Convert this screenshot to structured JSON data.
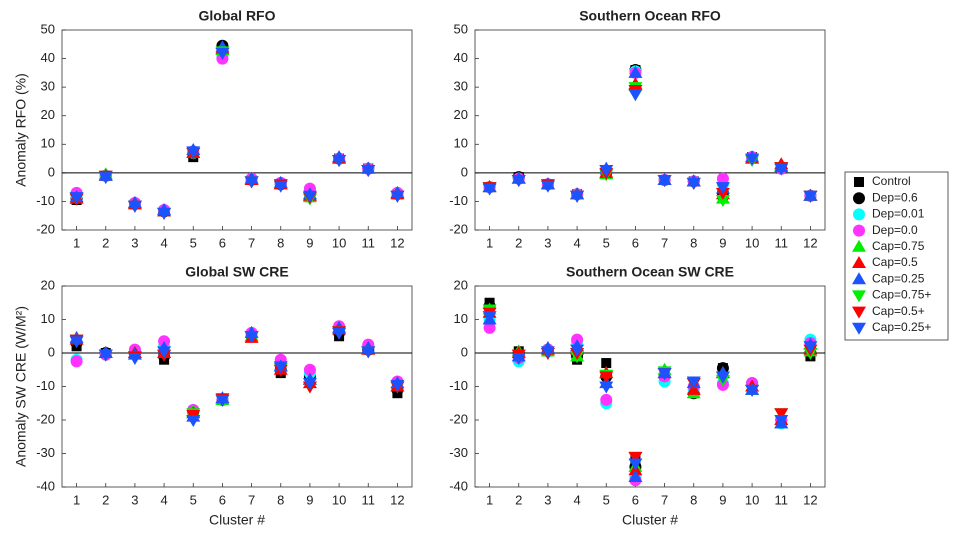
{
  "chart_data": [
    {
      "type": "scatter",
      "title": "Global RFO",
      "ylabel": "Anomaly RFO (%)",
      "categories": [
        "1",
        "2",
        "3",
        "4",
        "5",
        "6",
        "7",
        "8",
        "9",
        "10",
        "11",
        "12"
      ],
      "ylim": [
        -20,
        50
      ],
      "yticks": [
        -20,
        -10,
        0,
        10,
        20,
        30,
        40,
        50
      ],
      "zero_line": true,
      "series": [
        {
          "values": [
            -9.5,
            -1,
            -11,
            -13.5,
            5.5,
            43,
            -2.5,
            -4,
            -8.5,
            5,
            1.5,
            -7.5
          ]
        },
        {
          "values": [
            -9,
            -1,
            -11,
            -13.5,
            6.5,
            44.5,
            -2.5,
            -4,
            -7.5,
            5,
            1.5,
            -7.5
          ]
        },
        {
          "values": [
            -8,
            -1,
            -11,
            -13,
            7,
            41,
            -2.5,
            -3.5,
            -6,
            5,
            1.5,
            -7.5
          ]
        },
        {
          "values": [
            -7,
            -1,
            -10.5,
            -13,
            7.5,
            40,
            -2,
            -3.5,
            -5.5,
            5,
            1.5,
            -7
          ]
        },
        {
          "values": [
            -9,
            -0.5,
            -11,
            -13.5,
            7,
            43,
            -2.5,
            -4,
            -8.5,
            5,
            1.5,
            -7.5
          ]
        },
        {
          "values": [
            -9,
            -1,
            -11,
            -13.5,
            7,
            43.5,
            -2.5,
            -4,
            -8,
            5,
            1.5,
            -7.5
          ]
        },
        {
          "values": [
            -8.5,
            -1,
            -10.5,
            -13,
            8,
            44,
            -2,
            -3.5,
            -7.5,
            5.5,
            1.5,
            -7
          ]
        },
        {
          "values": [
            -9,
            -1,
            -11.5,
            -14,
            7,
            42.5,
            -3,
            -4,
            -9,
            4.5,
            1,
            -8
          ]
        },
        {
          "values": [
            -9,
            -1,
            -11.5,
            -14,
            7,
            42,
            -3,
            -4,
            -8.5,
            4.5,
            1,
            -8
          ]
        },
        {
          "values": [
            -8.5,
            -1.5,
            -11.5,
            -14,
            7.5,
            42,
            -3,
            -4.5,
            -8,
            4.5,
            1,
            -8
          ]
        }
      ]
    },
    {
      "type": "scatter",
      "title": "Southern Ocean RFO",
      "categories": [
        "1",
        "2",
        "3",
        "4",
        "5",
        "6",
        "7",
        "8",
        "9",
        "10",
        "11",
        "12"
      ],
      "ylim": [
        -20,
        50
      ],
      "yticks": [
        -20,
        -10,
        0,
        10,
        20,
        30,
        40,
        50
      ],
      "zero_line": true,
      "series": [
        {
          "values": [
            -5,
            -1.5,
            -4,
            -7.5,
            0,
            36,
            -2.5,
            -3,
            -8.5,
            5.5,
            1.5,
            -8
          ]
        },
        {
          "values": [
            -5,
            -1.5,
            -4,
            -7.5,
            0,
            36,
            -2.5,
            -3,
            -7,
            5.5,
            1.5,
            -8
          ]
        },
        {
          "values": [
            -5,
            -2,
            -4,
            -7.5,
            0.5,
            35.5,
            -2.5,
            -3,
            -4,
            5.5,
            1.5,
            -8
          ]
        },
        {
          "values": [
            -5,
            -2,
            -4,
            -7.5,
            0.5,
            35,
            -2.5,
            -3,
            -2,
            5.5,
            1.5,
            -8
          ]
        },
        {
          "values": [
            -5,
            -2,
            -4,
            -7.5,
            -0.5,
            30.5,
            -2.5,
            -3,
            -9,
            5,
            2.5,
            -8
          ]
        },
        {
          "values": [
            -5,
            -2,
            -4,
            -7.5,
            0,
            31,
            -2.5,
            -3,
            -7.5,
            5,
            3,
            -8
          ]
        },
        {
          "values": [
            -5,
            -2,
            -4,
            -7.5,
            1.5,
            35,
            -2.5,
            -3,
            -5.5,
            5.5,
            2,
            -8
          ]
        },
        {
          "values": [
            -5,
            -2.5,
            -4,
            -8,
            -0.5,
            30,
            -2.5,
            -3.5,
            -9.5,
            4.5,
            2,
            -8
          ]
        },
        {
          "values": [
            -5,
            -2.5,
            -4,
            -8,
            0,
            29,
            -2.5,
            -3.5,
            -7,
            5,
            2,
            -8
          ]
        },
        {
          "values": [
            -5.5,
            -2.5,
            -4.5,
            -8,
            1,
            27.5,
            -2.5,
            -3.5,
            -5,
            5,
            1.5,
            -8
          ]
        }
      ]
    },
    {
      "type": "scatter",
      "title": "Global SW CRE",
      "ylabel": "Anomaly SW CRE (W/M²)",
      "xlabel": "Cluster #",
      "categories": [
        "1",
        "2",
        "3",
        "4",
        "5",
        "6",
        "7",
        "8",
        "9",
        "10",
        "11",
        "12"
      ],
      "ylim": [
        -40,
        20
      ],
      "yticks": [
        -40,
        -30,
        -20,
        -10,
        0,
        10,
        20
      ],
      "zero_line": true,
      "series": [
        {
          "values": [
            2,
            0,
            0,
            -2,
            -18,
            -14,
            5,
            -6,
            -7,
            5,
            1,
            -12
          ]
        },
        {
          "values": [
            3,
            0,
            0.5,
            -1,
            -17.5,
            -14,
            5,
            -5,
            -7,
            6,
            1,
            -11
          ]
        },
        {
          "values": [
            -2,
            -0.5,
            0.5,
            2,
            -17,
            -14,
            5.5,
            -3,
            -6,
            7,
            2,
            -9
          ]
        },
        {
          "values": [
            -2.5,
            -0.5,
            1,
            3.5,
            -17,
            -14,
            6,
            -2,
            -5,
            8,
            2.5,
            -8.5
          ]
        },
        {
          "values": [
            4,
            0,
            0,
            0,
            -17.5,
            -14,
            5,
            -4,
            -8,
            7,
            1,
            -10
          ]
        },
        {
          "values": [
            4,
            0,
            0,
            0,
            -18,
            -13.5,
            4.5,
            -5,
            -9,
            7,
            1,
            -10
          ]
        },
        {
          "values": [
            4.5,
            0,
            -0.5,
            1.5,
            -19,
            -13.5,
            6,
            -4,
            -8,
            7.5,
            1.5,
            -9
          ]
        },
        {
          "values": [
            4,
            -0.5,
            -1,
            -0.5,
            -18,
            -14,
            5,
            -4.5,
            -10,
            6.5,
            0.5,
            -10
          ]
        },
        {
          "values": [
            4,
            -0.5,
            -1,
            -0.5,
            -18.5,
            -13.5,
            5,
            -5,
            -10,
            6.5,
            0.5,
            -10
          ]
        },
        {
          "values": [
            3.5,
            -0.5,
            -1.5,
            0.5,
            -20,
            -14,
            5,
            -4,
            -9,
            6,
            0.5,
            -9.5
          ]
        }
      ]
    },
    {
      "type": "scatter",
      "title": "Southern Ocean SW CRE",
      "xlabel": "Cluster #",
      "categories": [
        "1",
        "2",
        "3",
        "4",
        "5",
        "6",
        "7",
        "8",
        "9",
        "10",
        "11",
        "12"
      ],
      "ylim": [
        -40,
        20
      ],
      "yticks": [
        -40,
        -30,
        -20,
        -10,
        0,
        10,
        20
      ],
      "zero_line": true,
      "series": [
        {
          "values": [
            15,
            0.5,
            0.5,
            -2,
            -3,
            -32,
            -6,
            -12,
            -4.5,
            -10,
            -20,
            -1
          ]
        },
        {
          "values": [
            14,
            0,
            1,
            -1,
            -7,
            -34,
            -7,
            -12,
            -4.5,
            -9,
            -20,
            0
          ]
        },
        {
          "values": [
            10,
            -2.5,
            0.5,
            3,
            -15,
            -37,
            -8.5,
            -11,
            -9,
            -9,
            -21,
            4
          ]
        },
        {
          "values": [
            7.5,
            -1.5,
            1,
            4,
            -14,
            -38,
            -7,
            -10,
            -9.5,
            -9,
            -20,
            3
          ]
        },
        {
          "values": [
            13,
            0.5,
            0.5,
            -1,
            -6,
            -34,
            -5,
            -12,
            -6,
            -11,
            -21,
            0.5
          ]
        },
        {
          "values": [
            12,
            0,
            1,
            1,
            -6,
            -35,
            -6,
            -11,
            -6,
            -10,
            -20,
            1
          ]
        },
        {
          "values": [
            10,
            -1,
            1.5,
            2,
            -9,
            -37,
            -6,
            -9,
            -6,
            -11,
            -21,
            2.5
          ]
        },
        {
          "values": [
            13,
            -0.5,
            0,
            -1,
            -6.5,
            -31,
            -5.5,
            -9,
            -8,
            -11,
            -18,
            0
          ]
        },
        {
          "values": [
            12,
            -0.5,
            0,
            0,
            -7,
            -31,
            -6,
            -9,
            -7,
            -11,
            -18,
            1
          ]
        },
        {
          "values": [
            11,
            -1.5,
            0.5,
            1,
            -10,
            -33,
            -6,
            -8.5,
            -7,
            -11,
            -20,
            2
          ]
        }
      ]
    }
  ],
  "legend": {
    "series": [
      {
        "name": "Control",
        "color": "#000000",
        "marker": "square"
      },
      {
        "name": "Dep=0.6",
        "color": "#000000",
        "marker": "circle"
      },
      {
        "name": "Dep=0.01",
        "color": "#00ffff",
        "marker": "circle"
      },
      {
        "name": "Dep=0.0",
        "color": "#ff33ff",
        "marker": "circle"
      },
      {
        "name": "Cap=0.75",
        "color": "#00ee00",
        "marker": "triangle-up"
      },
      {
        "name": "Cap=0.5",
        "color": "#ff0000",
        "marker": "triangle-up"
      },
      {
        "name": "Cap=0.25",
        "color": "#1a53ff",
        "marker": "triangle-up"
      },
      {
        "name": "Cap=0.75+",
        "color": "#00ee00",
        "marker": "triangle-down"
      },
      {
        "name": "Cap=0.5+",
        "color": "#ff0000",
        "marker": "triangle-down"
      },
      {
        "name": "Cap=0.25+",
        "color": "#1a53ff",
        "marker": "triangle-down"
      }
    ]
  }
}
